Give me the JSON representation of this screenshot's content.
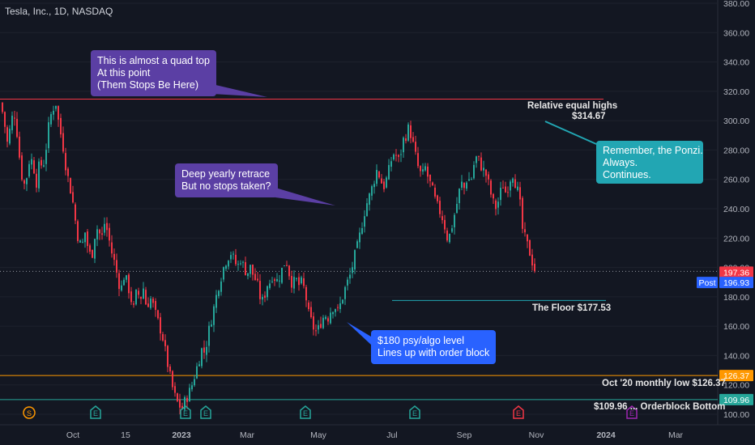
{
  "header": {
    "symbol_line": "Tesla, Inc., 1D, NASDAQ"
  },
  "chart_data": {
    "type": "candlestick",
    "y_axis": {
      "ticks": [
        100,
        120,
        140,
        160,
        180,
        200,
        220,
        240,
        260,
        280,
        300,
        320,
        340,
        360,
        380
      ],
      "ylim": [
        97,
        382
      ]
    },
    "x_axis": {
      "ticks": [
        "Oct",
        "15",
        "2023",
        "Mar",
        "May",
        "Jul",
        "Sep",
        "Nov",
        "2024",
        "Mar"
      ]
    },
    "series_path": [
      [
        0,
        312
      ],
      [
        4,
        300
      ],
      [
        8,
        285
      ],
      [
        12,
        296
      ],
      [
        16,
        308
      ],
      [
        20,
        292
      ],
      [
        24,
        270
      ],
      [
        28,
        255
      ],
      [
        32,
        262
      ],
      [
        36,
        276
      ],
      [
        40,
        270
      ],
      [
        44,
        258
      ],
      [
        48,
        272
      ],
      [
        52,
        268
      ],
      [
        56,
        282
      ],
      [
        60,
        300
      ],
      [
        64,
        308
      ],
      [
        68,
        312
      ],
      [
        72,
        296
      ],
      [
        76,
        286
      ],
      [
        80,
        270
      ],
      [
        84,
        258
      ],
      [
        88,
        248
      ],
      [
        92,
        232
      ],
      [
        96,
        218
      ],
      [
        100,
        214
      ],
      [
        104,
        224
      ],
      [
        108,
        212
      ],
      [
        112,
        206
      ],
      [
        116,
        222
      ],
      [
        120,
        228
      ],
      [
        124,
        218
      ],
      [
        128,
        230
      ],
      [
        132,
        224
      ],
      [
        136,
        212
      ],
      [
        140,
        204
      ],
      [
        144,
        194
      ],
      [
        148,
        184
      ],
      [
        152,
        194
      ],
      [
        156,
        190
      ],
      [
        160,
        180
      ],
      [
        164,
        172
      ],
      [
        168,
        185
      ],
      [
        172,
        178
      ],
      [
        176,
        186
      ],
      [
        180,
        172
      ],
      [
        184,
        180
      ],
      [
        188,
        174
      ],
      [
        192,
        166
      ],
      [
        196,
        160
      ],
      [
        200,
        152
      ],
      [
        204,
        140
      ],
      [
        208,
        128
      ],
      [
        212,
        118
      ],
      [
        216,
        110
      ],
      [
        220,
        106
      ],
      [
        224,
        104
      ],
      [
        228,
        110
      ],
      [
        232,
        114
      ],
      [
        236,
        120
      ],
      [
        240,
        128
      ],
      [
        244,
        136
      ],
      [
        248,
        144
      ],
      [
        252,
        142
      ],
      [
        256,
        155
      ],
      [
        260,
        165
      ],
      [
        264,
        175
      ],
      [
        268,
        186
      ],
      [
        272,
        194
      ],
      [
        276,
        202
      ],
      [
        280,
        207
      ],
      [
        284,
        210
      ],
      [
        288,
        205
      ],
      [
        292,
        200
      ],
      [
        296,
        206
      ],
      [
        300,
        200
      ],
      [
        304,
        196
      ],
      [
        308,
        200
      ],
      [
        312,
        194
      ],
      [
        316,
        190
      ],
      [
        320,
        180
      ],
      [
        324,
        176
      ],
      [
        328,
        188
      ],
      [
        332,
        190
      ],
      [
        336,
        196
      ],
      [
        340,
        190
      ],
      [
        344,
        194
      ],
      [
        348,
        200
      ],
      [
        352,
        206
      ],
      [
        356,
        196
      ],
      [
        360,
        188
      ],
      [
        364,
        192
      ],
      [
        368,
        188
      ],
      [
        372,
        190
      ],
      [
        376,
        182
      ],
      [
        380,
        168
      ],
      [
        384,
        162
      ],
      [
        388,
        156
      ],
      [
        392,
        158
      ],
      [
        396,
        164
      ],
      [
        400,
        168
      ],
      [
        404,
        166
      ],
      [
        408,
        172
      ],
      [
        412,
        174
      ],
      [
        416,
        170
      ],
      [
        420,
        176
      ],
      [
        424,
        184
      ],
      [
        428,
        190
      ],
      [
        432,
        196
      ],
      [
        436,
        206
      ],
      [
        440,
        214
      ],
      [
        444,
        224
      ],
      [
        448,
        236
      ],
      [
        452,
        244
      ],
      [
        456,
        250
      ],
      [
        460,
        258
      ],
      [
        464,
        266
      ],
      [
        468,
        262
      ],
      [
        472,
        254
      ],
      [
        476,
        260
      ],
      [
        480,
        268
      ],
      [
        484,
        278
      ],
      [
        488,
        276
      ],
      [
        492,
        272
      ],
      [
        496,
        286
      ],
      [
        500,
        290
      ],
      [
        504,
        296
      ],
      [
        508,
        286
      ],
      [
        512,
        276
      ],
      [
        516,
        266
      ],
      [
        520,
        262
      ],
      [
        524,
        268
      ],
      [
        528,
        260
      ],
      [
        532,
        254
      ],
      [
        536,
        246
      ],
      [
        540,
        240
      ],
      [
        544,
        236
      ],
      [
        548,
        228
      ],
      [
        552,
        218
      ],
      [
        556,
        226
      ],
      [
        560,
        236
      ],
      [
        564,
        246
      ],
      [
        568,
        258
      ],
      [
        572,
        254
      ],
      [
        576,
        262
      ],
      [
        580,
        258
      ],
      [
        584,
        270
      ],
      [
        588,
        276
      ],
      [
        592,
        270
      ],
      [
        596,
        266
      ],
      [
        600,
        262
      ],
      [
        604,
        252
      ],
      [
        608,
        244
      ],
      [
        612,
        240
      ],
      [
        616,
        250
      ],
      [
        620,
        256
      ],
      [
        624,
        250
      ],
      [
        628,
        260
      ],
      [
        632,
        264
      ],
      [
        636,
        256
      ],
      [
        640,
        248
      ],
      [
        644,
        226
      ],
      [
        648,
        218
      ],
      [
        652,
        212
      ],
      [
        656,
        204
      ],
      [
        660,
        197
      ]
    ],
    "horizontal_levels": [
      {
        "label": "Relative equal highs",
        "value_label": "$314.67",
        "value": 314.67,
        "color": "#f23645"
      },
      {
        "label": "The Floor $177.53",
        "value": 177.53,
        "color": "#22a6b3"
      },
      {
        "label": "Oct '20 monthly low $126.37",
        "value": 126.37,
        "color": "#ff9800"
      },
      {
        "label": "$109.96 ... Orderblock Bottom",
        "value": 109.96,
        "color": "#26a69a"
      },
      {
        "value": 197.36,
        "color": "#9598a1"
      }
    ],
    "price_tags": [
      {
        "text": "197.36",
        "value": 197.36,
        "color": "#f23645"
      },
      {
        "text": "Post",
        "value": 196.93,
        "color": "#2962ff"
      },
      {
        "text": "196.93",
        "value": 196.93,
        "color": "#2962ff"
      },
      {
        "text": "126.37",
        "value": 126.37,
        "color": "#ff9800"
      },
      {
        "text": "109.96",
        "value": 109.96,
        "color": "#26a69a"
      }
    ],
    "callouts": [
      {
        "text": "This is almost a quad top\nAt this point\n(Them Stops Be Here)",
        "color": "#5b3fa4"
      },
      {
        "text": "Deep yearly retrace\nBut no stops taken?",
        "color": "#5b3fa4"
      },
      {
        "text": "$180 psy/algo level\nLines up with order block",
        "color": "#2962ff"
      },
      {
        "text": "Remember, the Ponzi.\nAlways.\nContinues.",
        "color": "#22a6b3"
      }
    ],
    "event_markers": [
      {
        "icon": "S",
        "color": "#ff9800"
      },
      {
        "icon": "E",
        "color": "#26a69a"
      },
      {
        "icon": "E",
        "color": "#26a69a"
      },
      {
        "icon": "E",
        "color": "#26a69a"
      },
      {
        "icon": "E",
        "color": "#26a69a"
      },
      {
        "icon": "E",
        "color": "#26a69a"
      },
      {
        "icon": "E",
        "color": "#f23645"
      },
      {
        "icon": "E",
        "color": "#9c27b0"
      }
    ],
    "colors": {
      "up": "#26a69a",
      "down": "#f23645",
      "background": "#131722",
      "grid": "#1e222d"
    }
  }
}
